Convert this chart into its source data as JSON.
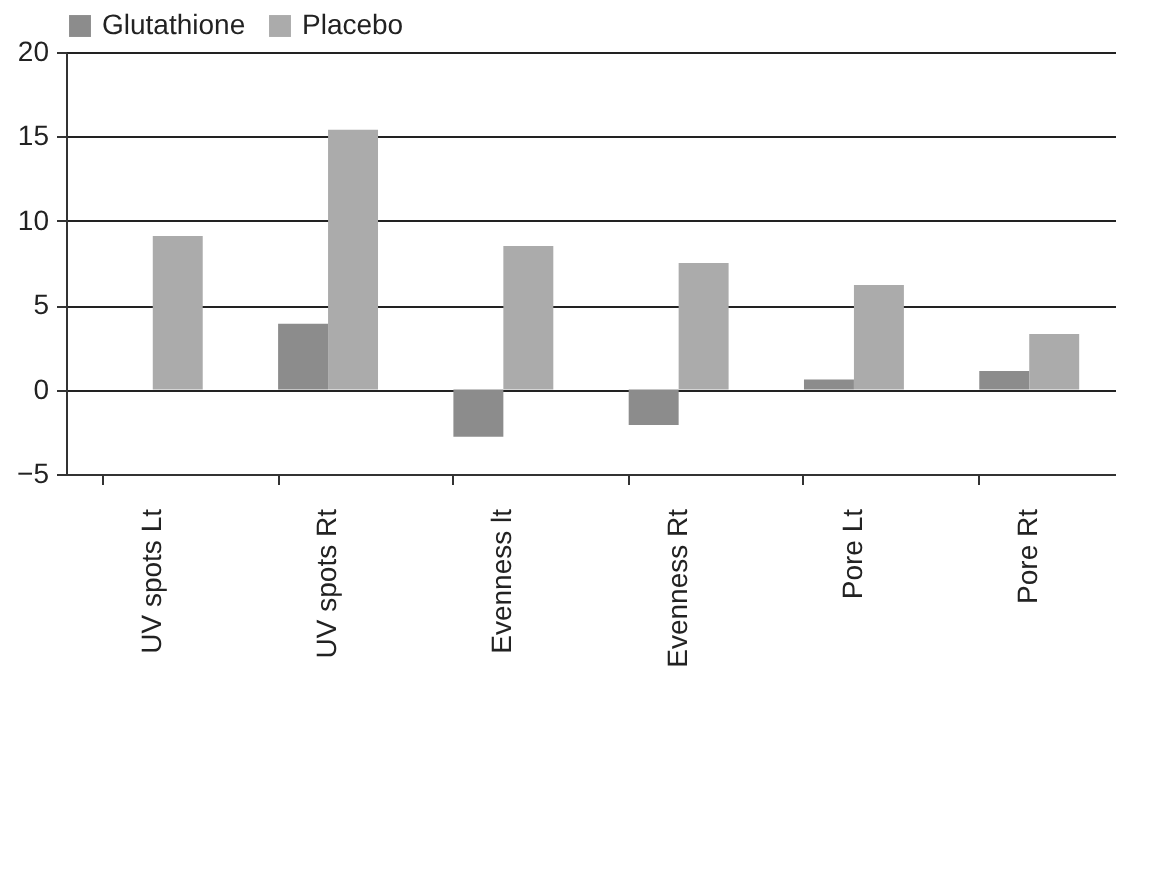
{
  "chart_data": {
    "type": "bar",
    "categories": [
      "UV spots Lt",
      "UV spots Rt",
      "Evenness lt",
      "Evenness Rt",
      "Pore Lt",
      "Pore Rt"
    ],
    "series": [
      {
        "name": "Glutathione",
        "color": "#8c8c8c",
        "values": [
          0,
          3.9,
          -2.8,
          -2.1,
          0.6,
          1.1
        ]
      },
      {
        "name": "Placebo",
        "color": "#ababab",
        "values": [
          9.1,
          15.4,
          8.5,
          7.5,
          6.2,
          3.3
        ]
      }
    ],
    "ylim": [
      -5,
      20
    ],
    "yticks": [
      -5,
      0,
      5,
      10,
      15,
      20
    ],
    "grid": "y",
    "legend": "top"
  }
}
